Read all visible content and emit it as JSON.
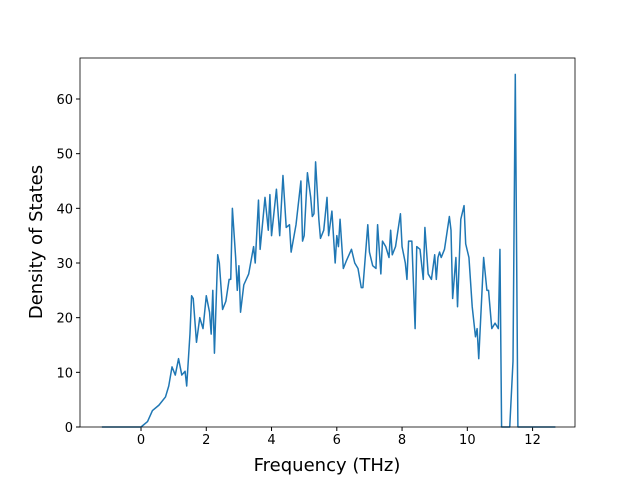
{
  "chart_data": {
    "type": "line",
    "xlabel": "Frequency (THz)",
    "ylabel": "Density of States",
    "x": [
      -1.2,
      0,
      0.2,
      0.35,
      0.55,
      0.75,
      0.85,
      0.95,
      1.05,
      1.15,
      1.25,
      1.35,
      1.4,
      1.5,
      1.55,
      1.6,
      1.7,
      1.8,
      1.9,
      2.0,
      2.1,
      2.15,
      2.2,
      2.25,
      2.35,
      2.4,
      2.5,
      2.6,
      2.7,
      2.75,
      2.8,
      2.9,
      2.95,
      3.0,
      3.05,
      3.15,
      3.3,
      3.45,
      3.5,
      3.6,
      3.65,
      3.8,
      3.9,
      3.95,
      4.0,
      4.15,
      4.25,
      4.35,
      4.45,
      4.55,
      4.6,
      4.75,
      4.9,
      4.95,
      5.0,
      5.1,
      5.2,
      5.25,
      5.3,
      5.35,
      5.45,
      5.5,
      5.6,
      5.7,
      5.75,
      5.85,
      5.95,
      6.0,
      6.05,
      6.1,
      6.2,
      6.3,
      6.45,
      6.55,
      6.65,
      6.75,
      6.8,
      6.95,
      7.0,
      7.1,
      7.2,
      7.25,
      7.35,
      7.4,
      7.5,
      7.6,
      7.65,
      7.7,
      7.8,
      7.95,
      8.0,
      8.1,
      8.15,
      8.2,
      8.3,
      8.4,
      8.45,
      8.55,
      8.65,
      8.7,
      8.8,
      8.9,
      9.0,
      9.05,
      9.1,
      9.15,
      9.2,
      9.3,
      9.45,
      9.5,
      9.55,
      9.65,
      9.7,
      9.8,
      9.9,
      9.95,
      10.05,
      10.15,
      10.25,
      10.3,
      10.35,
      10.5,
      10.6,
      10.65,
      10.75,
      10.85,
      10.95,
      11.0,
      11.05,
      11.3,
      11.4,
      11.47,
      11.55,
      12.7
    ],
    "series": [
      {
        "color": "#1f77b4",
        "values": [
          0,
          0,
          1,
          3,
          4,
          5.5,
          7.5,
          11,
          9.5,
          12.5,
          9.5,
          10.2,
          7.5,
          17,
          24,
          23.5,
          15.5,
          20,
          18,
          24,
          21,
          17,
          25,
          13.5,
          31.5,
          30,
          21.5,
          23,
          27,
          27,
          40,
          31,
          25,
          29.5,
          21,
          26,
          28,
          33,
          30,
          41.5,
          32.5,
          42,
          36,
          42.5,
          35,
          43.5,
          35,
          46,
          36.5,
          37,
          32,
          37,
          45,
          34,
          35,
          46.5,
          42,
          38.5,
          39,
          48.5,
          38,
          34.5,
          36,
          42,
          35,
          39.5,
          30,
          35,
          33,
          38,
          29,
          30.5,
          32.5,
          30,
          29,
          25.5,
          25.5,
          37,
          32,
          29.5,
          29,
          37,
          28,
          34,
          33,
          31,
          36,
          31.5,
          33,
          39,
          33,
          30,
          27,
          34,
          34,
          18,
          33,
          32.5,
          27,
          36.5,
          28,
          27,
          31.5,
          27,
          31,
          32,
          31,
          32.5,
          38.5,
          36,
          23.5,
          31,
          22,
          38,
          40.5,
          33.5,
          31,
          22,
          16.5,
          18,
          12.5,
          31,
          25,
          25,
          18,
          19,
          18,
          32.5,
          0,
          0,
          12,
          64.5,
          0,
          0
        ]
      }
    ],
    "xlim": [
      -1.87,
      13.3
    ],
    "ylim": [
      0,
      67.5
    ],
    "xticks": [
      0,
      2,
      4,
      6,
      8,
      10,
      12
    ],
    "yticks": [
      0,
      10,
      20,
      30,
      40,
      50,
      60
    ]
  }
}
